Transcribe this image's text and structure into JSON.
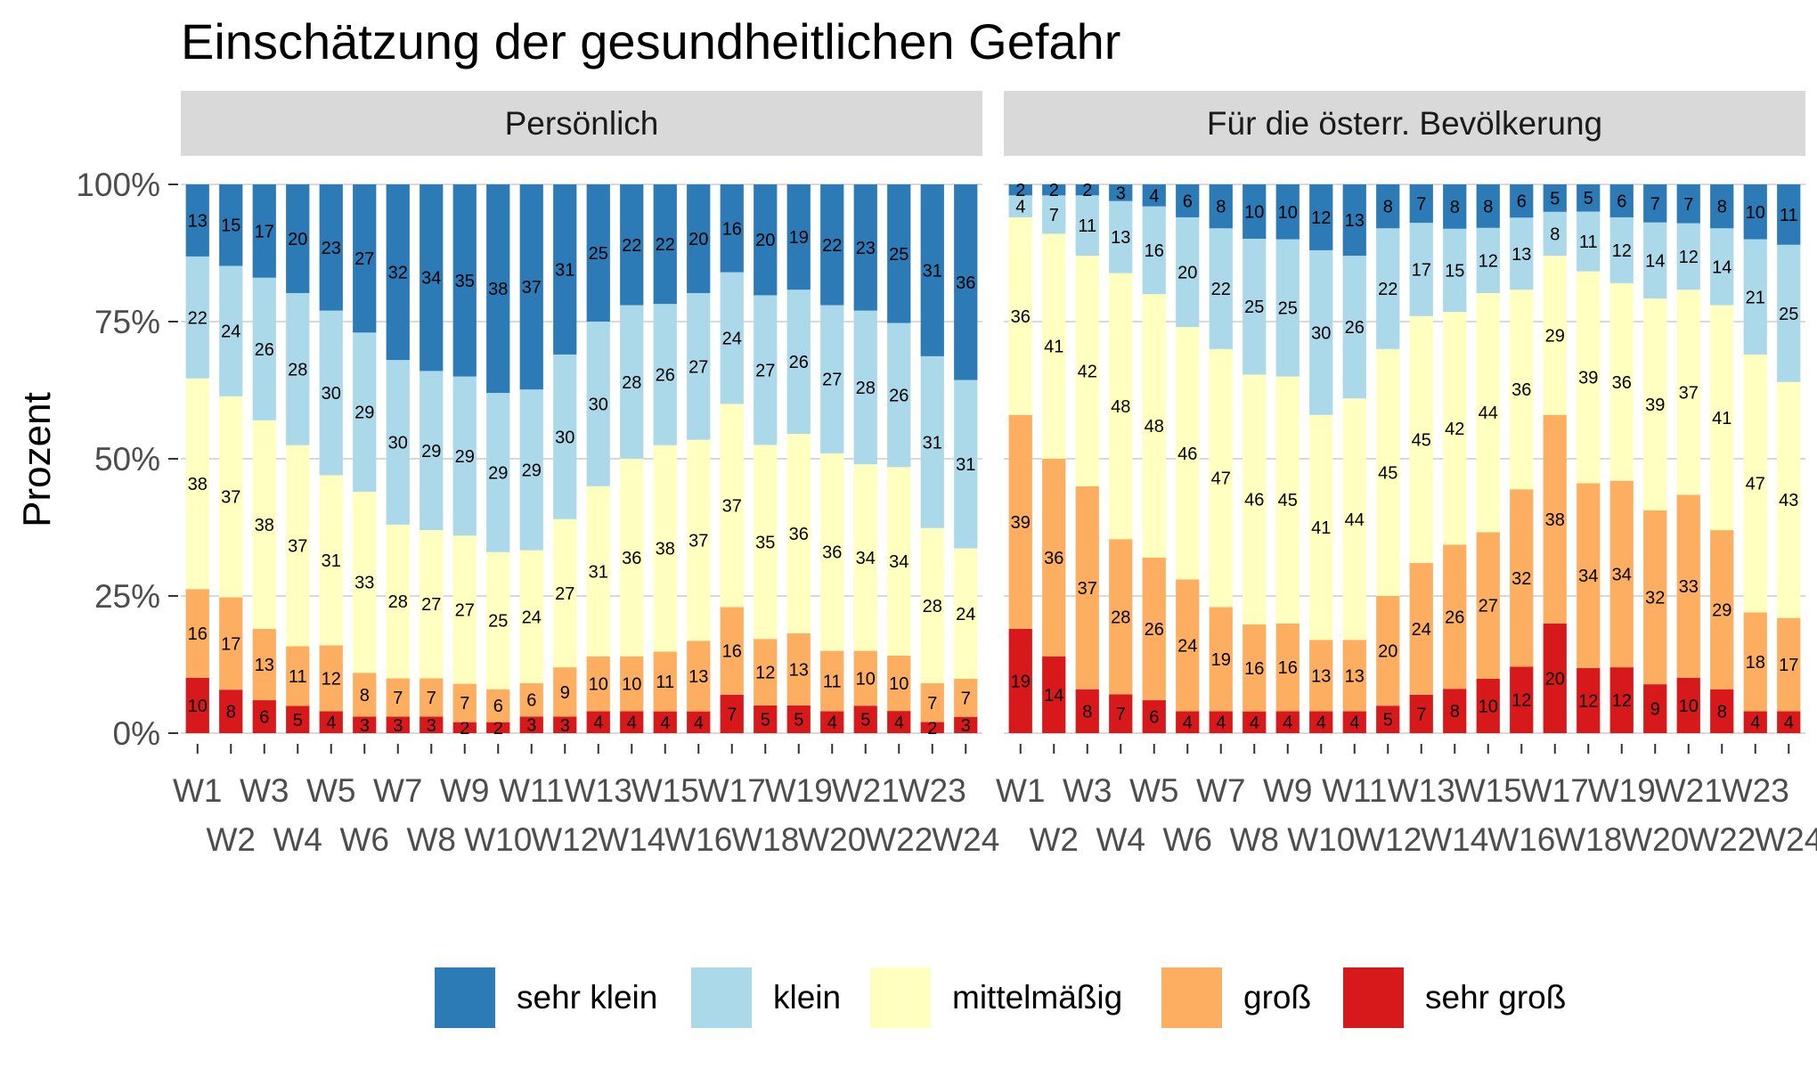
{
  "chart_data": {
    "type": "bar",
    "stacked": "percent",
    "title": "Einschätzung der gesundheitlichen Gefahr",
    "ylabel": "Prozent",
    "xlabel": "",
    "ylim": [
      0,
      100
    ],
    "yticks": [
      "0%",
      "25%",
      "50%",
      "75%",
      "100%"
    ],
    "grid": true,
    "legend_position": "bottom",
    "categories": [
      "W1",
      "W2",
      "W3",
      "W4",
      "W5",
      "W6",
      "W7",
      "W8",
      "W9",
      "W10",
      "W11",
      "W12",
      "W13",
      "W14",
      "W15",
      "W16",
      "W17",
      "W18",
      "W19",
      "W20",
      "W21",
      "W22",
      "W23",
      "W24"
    ],
    "stack_order": [
      "sehr groß",
      "groß",
      "mittelmäßig",
      "klein",
      "sehr klein"
    ],
    "colors": {
      "sehr klein": "#2c7bb6",
      "klein": "#abd9e9",
      "mittelmäßig": "#ffffbf",
      "groß": "#fdae61",
      "sehr groß": "#d7191c"
    },
    "legend": [
      {
        "name": "sehr klein",
        "color": "#2c7bb6"
      },
      {
        "name": "klein",
        "color": "#abd9e9"
      },
      {
        "name": "mittelmäßig",
        "color": "#ffffbf"
      },
      {
        "name": "groß",
        "color": "#fdae61"
      },
      {
        "name": "sehr groß",
        "color": "#d7191c"
      }
    ],
    "panels": [
      {
        "strip": "Persönlich",
        "series": [
          {
            "name": "sehr groß",
            "values": [
              10,
              8,
              6,
              5,
              4,
              3,
              3,
              3,
              2,
              2,
              3,
              3,
              4,
              4,
              4,
              4,
              7,
              5,
              5,
              4,
              5,
              4,
              2,
              3
            ]
          },
          {
            "name": "groß",
            "values": [
              16,
              17,
              13,
              11,
              12,
              8,
              7,
              7,
              7,
              6,
              6,
              9,
              10,
              10,
              11,
              13,
              16,
              12,
              13,
              11,
              10,
              10,
              7,
              7
            ]
          },
          {
            "name": "mittelmäßig",
            "values": [
              38,
              37,
              38,
              37,
              31,
              33,
              28,
              27,
              27,
              25,
              24,
              27,
              31,
              36,
              38,
              37,
              37,
              35,
              36,
              36,
              34,
              34,
              28,
              24
            ]
          },
          {
            "name": "klein",
            "values": [
              22,
              24,
              26,
              28,
              30,
              29,
              30,
              29,
              29,
              29,
              29,
              30,
              30,
              28,
              26,
              27,
              24,
              27,
              26,
              27,
              28,
              26,
              31,
              31
            ]
          },
          {
            "name": "sehr klein",
            "values": [
              13,
              15,
              17,
              20,
              23,
              27,
              32,
              34,
              35,
              38,
              37,
              31,
              25,
              22,
              22,
              20,
              16,
              20,
              19,
              22,
              23,
              25,
              31,
              36
            ]
          }
        ]
      },
      {
        "strip": "Für die österr. Bevölkerung",
        "series": [
          {
            "name": "sehr groß",
            "values": [
              19,
              14,
              8,
              7,
              6,
              4,
              4,
              4,
              4,
              4,
              4,
              5,
              7,
              8,
              10,
              12,
              20,
              12,
              12,
              9,
              10,
              8,
              4,
              4
            ]
          },
          {
            "name": "groß",
            "values": [
              39,
              36,
              37,
              28,
              26,
              24,
              19,
              16,
              16,
              13,
              13,
              20,
              24,
              26,
              27,
              32,
              38,
              34,
              34,
              32,
              33,
              29,
              18,
              17
            ]
          },
          {
            "name": "mittelmäßig",
            "values": [
              36,
              41,
              42,
              48,
              48,
              46,
              47,
              46,
              45,
              41,
              44,
              45,
              45,
              42,
              44,
              36,
              29,
              39,
              36,
              39,
              37,
              41,
              47,
              43
            ]
          },
          {
            "name": "klein",
            "values": [
              4,
              7,
              11,
              13,
              16,
              20,
              22,
              25,
              25,
              30,
              26,
              22,
              17,
              15,
              12,
              13,
              8,
              11,
              12,
              14,
              12,
              14,
              21,
              25
            ]
          },
          {
            "name": "sehr klein",
            "values": [
              2,
              2,
              2,
              3,
              4,
              6,
              8,
              10,
              10,
              12,
              13,
              8,
              7,
              8,
              8,
              6,
              5,
              5,
              6,
              7,
              7,
              8,
              10,
              11
            ]
          }
        ]
      }
    ]
  }
}
